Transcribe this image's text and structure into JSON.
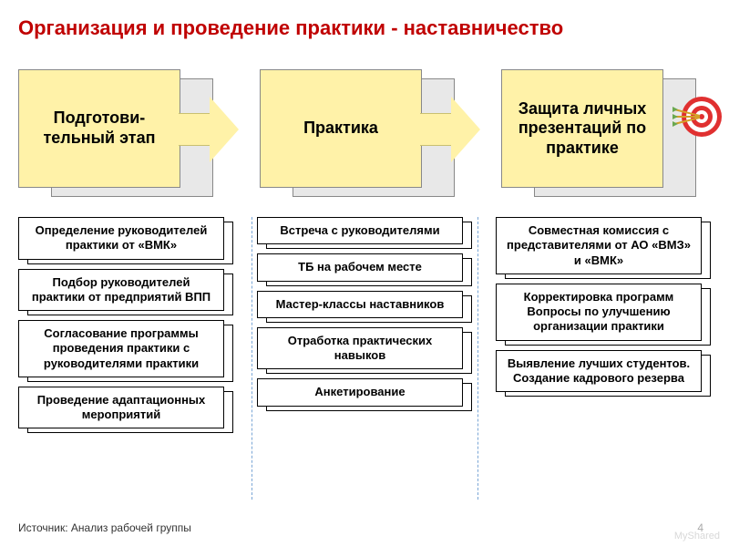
{
  "title": {
    "text": "Организация и проведение практики - наставничество",
    "color": "#c00000",
    "fontsize": 22
  },
  "stages": [
    {
      "label": "Подготови-тельный этап",
      "bg": "#fff2a8",
      "has_arrow": true
    },
    {
      "label": "Практика",
      "bg": "#fff2a8",
      "has_arrow": true
    },
    {
      "label": "Защита личных презентаций по практике",
      "bg": "#fff2a8",
      "has_arrow": false
    }
  ],
  "arrow": {
    "body_color": "#fff2a8",
    "head_color": "#fff2a8",
    "border": "#c9c070"
  },
  "columns": [
    [
      "Определение руководителей практики от «ВМК»",
      "Подбор руководителей практики от предприятий ВПП",
      "Согласование программы проведения практики с руководителями практики",
      "Проведение адаптационных мероприятий"
    ],
    [
      "Встреча с руководителями",
      "ТБ на рабочем месте",
      "Мастер-классы наставников",
      "Отработка практических навыков",
      "Анкетирование"
    ],
    [
      "Совместная комиссия с представителями от АО «ВМЗ» и «ВМК»",
      "Корректировка программ Вопросы по улучшению организации практики",
      "Выявление лучших студентов. Создание кадрового резерва"
    ]
  ],
  "source": "Источник: Анализ рабочей группы",
  "page_number": "4",
  "watermark": "MyShared",
  "target_icon": {
    "rings": [
      "#e03030",
      "#ffffff",
      "#e03030",
      "#ffffff",
      "#e03030"
    ],
    "dart": "#d4a028"
  }
}
